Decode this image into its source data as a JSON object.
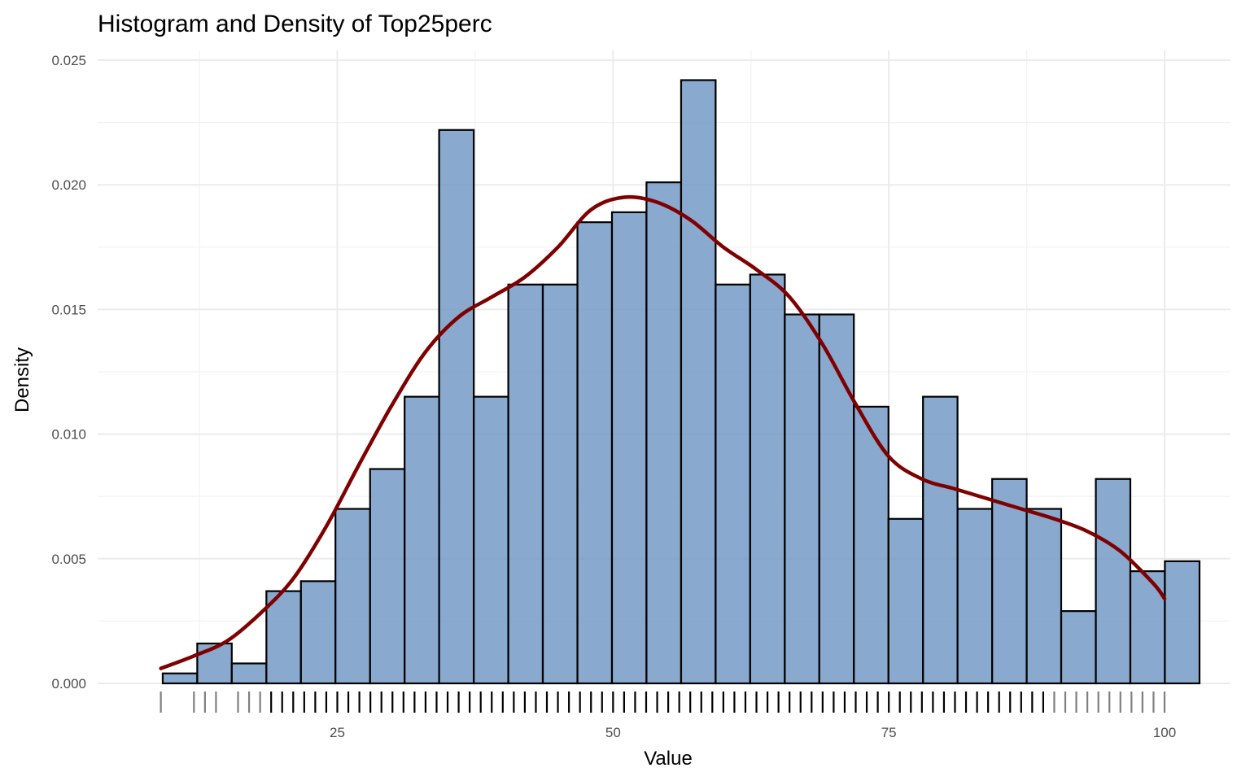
{
  "chart_data": {
    "type": "histogram",
    "title": "Histogram and Density of Top25perc",
    "xlabel": "Value",
    "ylabel": "Density",
    "xlim": [
      8,
      103.5
    ],
    "ylim": [
      0,
      0.0255
    ],
    "x_ticks": [
      25,
      50,
      75,
      100
    ],
    "x_tick_labels": [
      "25",
      "50",
      "75",
      "100"
    ],
    "y_ticks": [
      0,
      0.005,
      0.01,
      0.015,
      0.02,
      0.025
    ],
    "y_tick_labels": [
      "0.000",
      "0.005",
      "0.010",
      "0.015",
      "0.020",
      "0.025"
    ],
    "grid": true,
    "bin_width": 3.13,
    "bins": [
      {
        "x0": 9.17,
        "x1": 12.3,
        "density": 0.0004
      },
      {
        "x0": 12.3,
        "x1": 15.43,
        "density": 0.0016
      },
      {
        "x0": 15.43,
        "x1": 18.57,
        "density": 0.0008
      },
      {
        "x0": 18.57,
        "x1": 21.7,
        "density": 0.0037
      },
      {
        "x0": 21.7,
        "x1": 24.83,
        "density": 0.0041
      },
      {
        "x0": 24.83,
        "x1": 27.97,
        "density": 0.007
      },
      {
        "x0": 27.97,
        "x1": 31.1,
        "density": 0.0086
      },
      {
        "x0": 31.1,
        "x1": 34.23,
        "density": 0.0115
      },
      {
        "x0": 34.23,
        "x1": 37.37,
        "density": 0.0222
      },
      {
        "x0": 37.37,
        "x1": 40.5,
        "density": 0.0115
      },
      {
        "x0": 40.5,
        "x1": 43.63,
        "density": 0.016
      },
      {
        "x0": 43.63,
        "x1": 46.77,
        "density": 0.016
      },
      {
        "x0": 46.77,
        "x1": 49.9,
        "density": 0.0185
      },
      {
        "x0": 49.9,
        "x1": 53.03,
        "density": 0.0189
      },
      {
        "x0": 53.03,
        "x1": 56.17,
        "density": 0.0201
      },
      {
        "x0": 56.17,
        "x1": 59.3,
        "density": 0.0242
      },
      {
        "x0": 59.3,
        "x1": 62.43,
        "density": 0.016
      },
      {
        "x0": 62.43,
        "x1": 65.57,
        "density": 0.0164
      },
      {
        "x0": 65.57,
        "x1": 68.7,
        "density": 0.0148
      },
      {
        "x0": 68.7,
        "x1": 71.83,
        "density": 0.0148
      },
      {
        "x0": 71.83,
        "x1": 74.97,
        "density": 0.0111
      },
      {
        "x0": 74.97,
        "x1": 78.1,
        "density": 0.0066
      },
      {
        "x0": 78.1,
        "x1": 81.23,
        "density": 0.0115
      },
      {
        "x0": 81.23,
        "x1": 84.37,
        "density": 0.007
      },
      {
        "x0": 84.37,
        "x1": 87.5,
        "density": 0.0082
      },
      {
        "x0": 87.5,
        "x1": 90.63,
        "density": 0.007
      },
      {
        "x0": 90.63,
        "x1": 93.77,
        "density": 0.0029
      },
      {
        "x0": 93.77,
        "x1": 96.9,
        "density": 0.0082
      },
      {
        "x0": 96.9,
        "x1": 100.03,
        "density": 0.0045
      },
      {
        "x0": 100.03,
        "x1": 103.17,
        "density": 0.0049
      }
    ],
    "density_curve": {
      "x": [
        9,
        12,
        15,
        18,
        21,
        24,
        27,
        30,
        33,
        36,
        39,
        42,
        45,
        48,
        51,
        54,
        57,
        60,
        63,
        66,
        69,
        72,
        75,
        78,
        81,
        84,
        87,
        90,
        93,
        96,
        99,
        100
      ],
      "y": [
        0.0006,
        0.0011,
        0.0017,
        0.0028,
        0.0042,
        0.0063,
        0.0088,
        0.0112,
        0.0133,
        0.0147,
        0.0155,
        0.0163,
        0.0175,
        0.019,
        0.0195,
        0.0193,
        0.0186,
        0.0175,
        0.0166,
        0.0155,
        0.0136,
        0.0112,
        0.0091,
        0.0082,
        0.0078,
        0.0074,
        0.007,
        0.0066,
        0.0061,
        0.0053,
        0.004,
        0.0034
      ]
    },
    "rug": [
      9,
      12,
      13,
      14,
      16,
      17,
      18,
      19,
      20,
      21,
      22,
      23,
      24,
      25,
      26,
      27,
      28,
      29,
      30,
      31,
      32,
      33,
      34,
      35,
      36,
      37,
      38,
      39,
      40,
      41,
      42,
      43,
      44,
      45,
      46,
      47,
      48,
      49,
      50,
      51,
      52,
      53,
      54,
      55,
      56,
      57,
      58,
      59,
      60,
      61,
      62,
      63,
      64,
      65,
      66,
      67,
      68,
      69,
      70,
      71,
      72,
      73,
      74,
      75,
      76,
      77,
      78,
      79,
      80,
      81,
      82,
      83,
      84,
      85,
      86,
      87,
      88,
      89,
      90,
      91,
      92,
      93,
      94,
      95,
      96,
      97,
      98,
      99,
      100
    ],
    "colors": {
      "bar_fill": "#6f96c3",
      "bar_fill_opacity": 0.82,
      "bar_outline": "#000000",
      "density_line": "#7f0000",
      "rug_dark": "#000000",
      "rug_light": "#7f7f7f"
    }
  }
}
